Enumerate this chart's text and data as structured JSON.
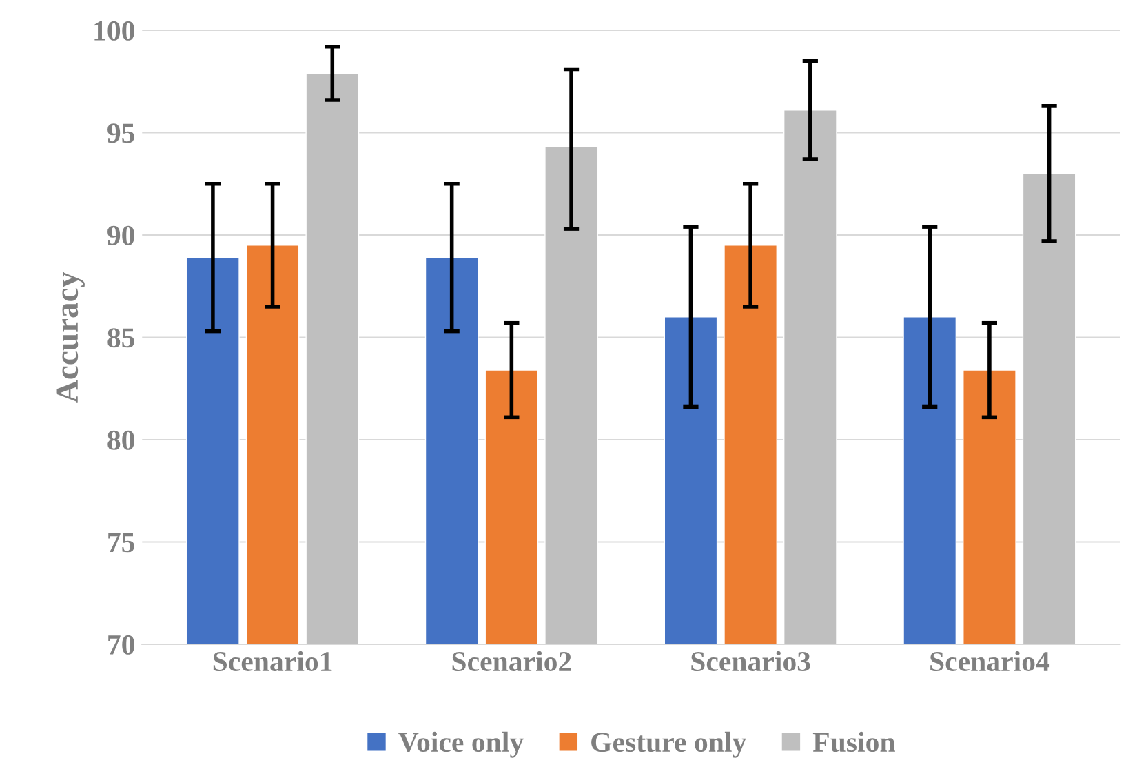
{
  "chart_data": {
    "type": "bar",
    "ylabel": "Accuracy",
    "categories": [
      "Scenario1",
      "Scenario2",
      "Scenario3",
      "Scenario4"
    ],
    "series": [
      {
        "name": "Voice only",
        "color": "#4472c4",
        "values": [
          88.9,
          88.9,
          86.0,
          86.0
        ],
        "errors": [
          [
            85.3,
            92.5
          ],
          [
            85.3,
            92.5
          ],
          [
            81.6,
            90.4
          ],
          [
            81.6,
            90.4
          ]
        ]
      },
      {
        "name": "Gesture only",
        "color": "#ed7d31",
        "values": [
          89.5,
          83.4,
          89.5,
          83.4
        ],
        "errors": [
          [
            86.5,
            92.5
          ],
          [
            81.1,
            85.7
          ],
          [
            86.5,
            92.5
          ],
          [
            81.1,
            85.7
          ]
        ]
      },
      {
        "name": "Fusion",
        "color": "#bfbfbf",
        "values": [
          97.9,
          94.3,
          96.1,
          93.0
        ],
        "errors": [
          [
            96.6,
            99.2
          ],
          [
            90.3,
            98.1
          ],
          [
            93.7,
            98.5
          ],
          [
            89.7,
            96.3
          ]
        ]
      }
    ],
    "ylim": [
      70,
      100
    ],
    "yticks": [
      70,
      75,
      80,
      85,
      90,
      95,
      100
    ],
    "grid": "y",
    "legend": "bottom"
  }
}
